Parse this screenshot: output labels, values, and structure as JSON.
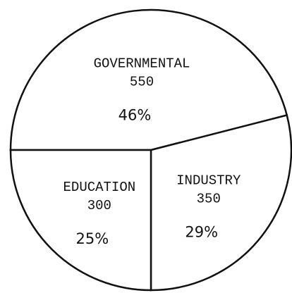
{
  "chart_data": {
    "type": "pie",
    "categories": [
      "GOVERNMENTAL",
      "INDUSTRY",
      "EDUCATION"
    ],
    "values": [
      46,
      29,
      25
    ],
    "value_labels": [
      "46%",
      "29%",
      "25%"
    ],
    "counts": [
      550,
      350,
      300
    ],
    "color": "#ffffff"
  }
}
